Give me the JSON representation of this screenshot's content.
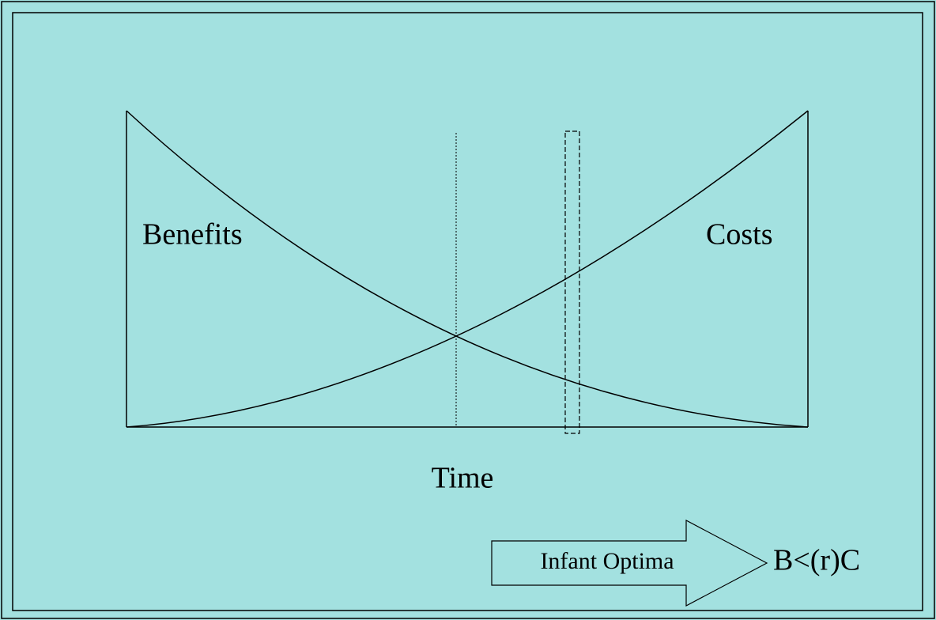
{
  "labels": {
    "benefits": "Benefits",
    "costs": "Costs",
    "time": "Time"
  },
  "arrow": {
    "label": "Infant Optima",
    "result": "B<(r)C"
  }
}
